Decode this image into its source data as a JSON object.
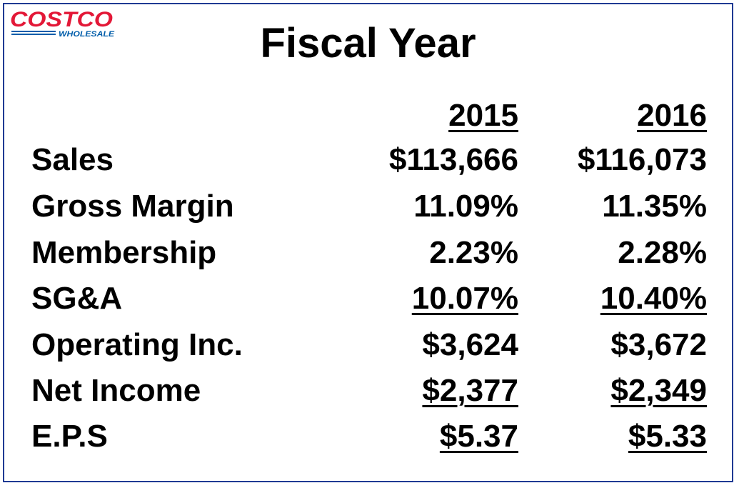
{
  "logo": {
    "brand_top": "COSTCO",
    "brand_bottom": "WHOLESALE",
    "colors": {
      "red": "#e31837",
      "blue": "#005daa"
    }
  },
  "title": "Fiscal Year",
  "columns": [
    "2015",
    "2016"
  ],
  "rows": [
    {
      "label": "Sales",
      "values": [
        "$113,666",
        "$116,073"
      ],
      "underlined": false
    },
    {
      "label": "Gross Margin",
      "values": [
        "11.09%",
        "11.35%"
      ],
      "underlined": false
    },
    {
      "label": "Membership",
      "values": [
        "2.23%",
        "2.28%"
      ],
      "underlined": false
    },
    {
      "label": "SG&A",
      "values": [
        "10.07%",
        "10.40%"
      ],
      "underlined": true
    },
    {
      "label": "Operating Inc.",
      "values": [
        "$3,624",
        "$3,672"
      ],
      "underlined": false
    },
    {
      "label": "Net Income",
      "values": [
        "$2,377",
        "$2,349"
      ],
      "underlined": true
    },
    {
      "label": "E.P.S",
      "values": [
        "$5.37",
        "$5.33"
      ],
      "underlined": true
    }
  ],
  "colors": {
    "border": "#1f3a93",
    "text": "#000000",
    "background": "#ffffff"
  }
}
